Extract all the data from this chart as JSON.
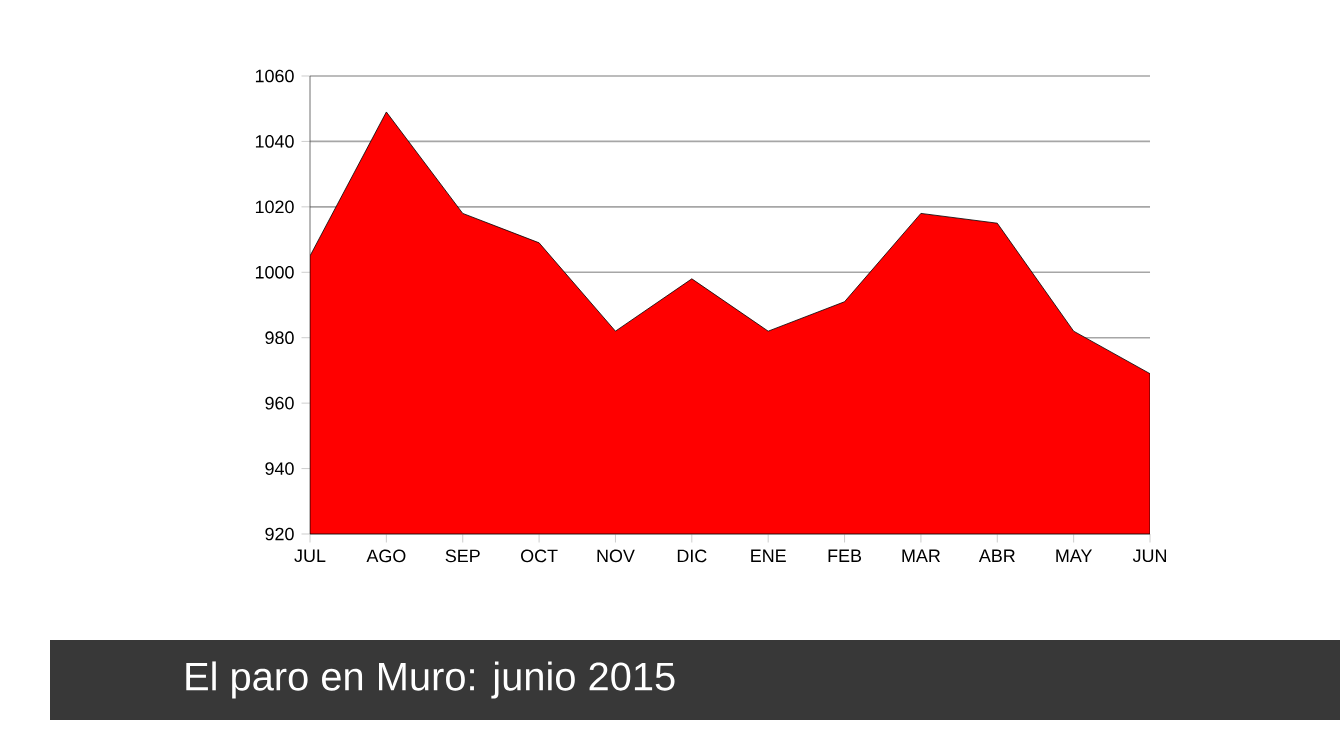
{
  "chart_data": {
    "type": "area",
    "title": "El paro en Muro: junio 2015",
    "categories": [
      "JUL",
      "AGO",
      "SEP",
      "OCT",
      "NOV",
      "DIC",
      "ENE",
      "FEB",
      "MAR",
      "ABR",
      "MAY",
      "JUN"
    ],
    "values": [
      1005,
      1049,
      1018,
      1009,
      982,
      998,
      982,
      991,
      1018,
      1015,
      982,
      969
    ],
    "color": "#ff0000",
    "ylim": [
      920,
      1060
    ],
    "yticks": [
      920,
      940,
      960,
      980,
      1000,
      1020,
      1040,
      1060
    ],
    "grid": "y"
  }
}
